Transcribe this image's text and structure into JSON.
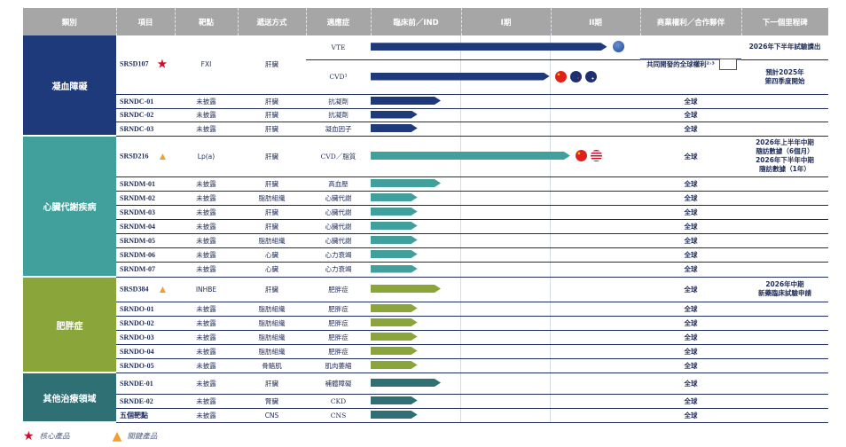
{
  "colors": {
    "header": "#a6a6a6",
    "text": "#1f2d5a",
    "star": "#c8102e",
    "triangle": "#f0a030"
  },
  "headers": [
    "類別",
    "項目",
    "靶點",
    "遞送方式",
    "適應症",
    "臨床前／IND",
    "I期",
    "II期",
    "商業權利／合作夥伴",
    "下一個里程碑"
  ],
  "groups": [
    {
      "name": "凝血障礙",
      "color": "#1f3a7a",
      "rows": [
        {
          "project": "SRSD107",
          "marker": "star",
          "target": "FXI",
          "delivery": "肝臟",
          "rights": "共同開發的全球權利²˒³",
          "partner_logo": true,
          "indications": [
            {
              "name": "VTE",
              "progress_phases": 2.63,
              "flags": [
                "globe"
              ],
              "milestone": "2026年下半年試驗讀出"
            },
            {
              "name": "CVD¹",
              "progress_phases": 1.99,
              "flags": [
                "china",
                "new-zealand",
                "australia"
              ],
              "milestone": "預計2025年\n第四季度開始"
            }
          ]
        },
        {
          "project": "SRNDC-01",
          "target": "未披露",
          "delivery": "肝臟",
          "rights": "全球",
          "indications": [
            {
              "name": "抗凝劑",
              "progress_phases": 0.78,
              "milestone": ""
            }
          ]
        },
        {
          "project": "SRNDC-02",
          "target": "未披露",
          "delivery": "肝臟",
          "rights": "全球",
          "indications": [
            {
              "name": "抗凝劑",
              "progress_phases": 0.52,
              "milestone": ""
            }
          ]
        },
        {
          "project": "SRNDC-03",
          "target": "未披露",
          "delivery": "肝臟",
          "rights": "全球",
          "indications": [
            {
              "name": "凝血因子",
              "progress_phases": 0.52,
              "milestone": ""
            }
          ]
        }
      ]
    },
    {
      "name": "心臟代謝疾病",
      "color": "#419f9c",
      "rows": [
        {
          "project": "SRSD216",
          "marker": "triangle",
          "target": "Lp(a)",
          "delivery": "肝臟",
          "rights": "全球",
          "indications": [
            {
              "name": "CVD／脂質",
              "progress_phases": 2.22,
              "flags": [
                "china",
                "usa"
              ],
              "milestone": "2026年上半年中期\n隨訪數據（6個月）\n2026年下半年中期\n隨訪數據（1年）"
            }
          ]
        },
        {
          "project": "SRNDM-01",
          "target": "未披露",
          "delivery": "肝臟",
          "rights": "全球",
          "indications": [
            {
              "name": "高血壓",
              "progress_phases": 0.78,
              "milestone": ""
            }
          ]
        },
        {
          "project": "SRNDM-02",
          "target": "未披露",
          "delivery": "脂肪組織",
          "rights": "全球",
          "indications": [
            {
              "name": "心臟代謝",
              "progress_phases": 0.52,
              "milestone": ""
            }
          ]
        },
        {
          "project": "SRNDM-03",
          "target": "未披露",
          "delivery": "肝臟",
          "rights": "全球",
          "indications": [
            {
              "name": "心臟代謝",
              "progress_phases": 0.52,
              "milestone": ""
            }
          ]
        },
        {
          "project": "SRNDM-04",
          "target": "未披露",
          "delivery": "肝臟",
          "rights": "全球",
          "indications": [
            {
              "name": "心臟代謝",
              "progress_phases": 0.52,
              "milestone": ""
            }
          ]
        },
        {
          "project": "SRNDM-05",
          "target": "未披露",
          "delivery": "脂肪組織",
          "rights": "全球",
          "indications": [
            {
              "name": "心臟代謝",
              "progress_phases": 0.52,
              "milestone": ""
            }
          ]
        },
        {
          "project": "SRNDM-06",
          "target": "未披露",
          "delivery": "心臟",
          "rights": "全球",
          "indications": [
            {
              "name": "心力衰竭",
              "progress_phases": 0.52,
              "milestone": ""
            }
          ]
        },
        {
          "project": "SRNDM-07",
          "target": "未披露",
          "delivery": "心臟",
          "rights": "全球",
          "indications": [
            {
              "name": "心力衰竭",
              "progress_phases": 0.52,
              "milestone": ""
            }
          ]
        }
      ]
    },
    {
      "name": "肥胖症",
      "color": "#8aa63a",
      "rows": [
        {
          "project": "SRSD384",
          "marker": "triangle",
          "target": "INHBE",
          "delivery": "肝臟",
          "rights": "全球",
          "indications": [
            {
              "name": "肥胖症",
              "progress_phases": 0.78,
              "milestone": "2026年中期\n新藥臨床試驗申請"
            }
          ]
        },
        {
          "project": "SRNDO-01",
          "target": "未披露",
          "delivery": "脂肪組織",
          "rights": "全球",
          "indications": [
            {
              "name": "肥胖症",
              "progress_phases": 0.52,
              "milestone": ""
            }
          ]
        },
        {
          "project": "SRNDO-02",
          "target": "未披露",
          "delivery": "脂肪組織",
          "rights": "全球",
          "indications": [
            {
              "name": "肥胖症",
              "progress_phases": 0.52,
              "milestone": ""
            }
          ]
        },
        {
          "project": "SRNDO-03",
          "target": "未披露",
          "delivery": "脂肪組織",
          "rights": "全球",
          "indications": [
            {
              "name": "肥胖症",
              "progress_phases": 0.52,
              "milestone": ""
            }
          ]
        },
        {
          "project": "SRNDO-04",
          "target": "未披露",
          "delivery": "脂肪組織",
          "rights": "全球",
          "indications": [
            {
              "name": "肥胖症",
              "progress_phases": 0.52,
              "milestone": ""
            }
          ]
        },
        {
          "project": "SRNDO-05",
          "target": "未披露",
          "delivery": "骨骼肌",
          "rights": "全球",
          "indications": [
            {
              "name": "肌肉萎縮",
              "progress_phases": 0.52,
              "milestone": ""
            }
          ]
        }
      ]
    },
    {
      "name": "其他治療領域",
      "color": "#2e7073",
      "rows": [
        {
          "project": "SRNDE-01",
          "target": "未披露",
          "delivery": "肝臟",
          "rights": "全球",
          "indications": [
            {
              "name": "補體障礙",
              "progress_phases": 0.78,
              "milestone": ""
            }
          ]
        },
        {
          "project": "SRNDE-02",
          "target": "未披露",
          "delivery": "腎臟",
          "rights": "全球",
          "indications": [
            {
              "name": "CKD",
              "progress_phases": 0.52,
              "milestone": ""
            }
          ]
        },
        {
          "project": "五個靶點",
          "target": "未披露",
          "delivery": "CNS",
          "rights": "全球",
          "indications": [
            {
              "name": "CNS",
              "progress_phases": 0.52,
              "milestone": ""
            }
          ]
        }
      ]
    }
  ],
  "legend": {
    "core": "核心產品",
    "key": "關鍵產品"
  }
}
